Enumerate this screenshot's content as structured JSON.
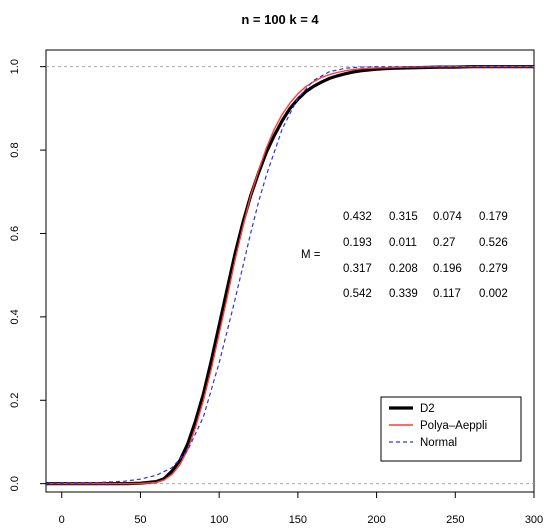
{
  "chart_data": {
    "type": "line",
    "title": "n = 100  k = 4",
    "xlabel": "",
    "ylabel": "",
    "xlim": [
      -10,
      300
    ],
    "ylim": [
      -0.02,
      1.04
    ],
    "x_ticks": [
      0,
      50,
      100,
      150,
      200,
      250,
      300
    ],
    "y_ticks": [
      0.0,
      0.2,
      0.4,
      0.6,
      0.8,
      1.0
    ],
    "y_tick_labels": [
      "0.0",
      "0.2",
      "0.4",
      "0.6",
      "0.8",
      "1.0"
    ],
    "reference_lines": [
      0,
      1
    ],
    "series": [
      {
        "name": "D2",
        "color": "#000000",
        "style": "solid-thick",
        "x": [
          -10,
          40,
          50,
          60,
          65,
          70,
          75,
          80,
          85,
          90,
          95,
          100,
          105,
          110,
          115,
          120,
          125,
          130,
          135,
          140,
          145,
          150,
          155,
          160,
          165,
          170,
          175,
          180,
          185,
          190,
          200,
          210,
          220,
          230,
          240,
          250,
          260,
          280,
          300
        ],
        "y": [
          0,
          0,
          0.001,
          0.005,
          0.012,
          0.03,
          0.055,
          0.095,
          0.15,
          0.215,
          0.295,
          0.38,
          0.465,
          0.55,
          0.625,
          0.69,
          0.745,
          0.795,
          0.835,
          0.87,
          0.9,
          0.922,
          0.94,
          0.953,
          0.963,
          0.972,
          0.978,
          0.983,
          0.987,
          0.99,
          0.994,
          0.996,
          0.997,
          0.998,
          0.999,
          0.999,
          1.0,
          1.0,
          1.0
        ]
      },
      {
        "name": "Polya–Aeppli",
        "color": "#ff3b3b",
        "style": "solid",
        "x": [
          -10,
          40,
          50,
          60,
          65,
          70,
          75,
          80,
          85,
          90,
          95,
          100,
          105,
          110,
          115,
          120,
          125,
          130,
          135,
          140,
          145,
          150,
          155,
          160,
          165,
          170,
          175,
          180,
          185,
          190,
          200,
          210,
          220,
          230,
          240,
          250,
          260,
          280,
          300
        ],
        "y": [
          0,
          0,
          0.0005,
          0.003,
          0.009,
          0.022,
          0.045,
          0.082,
          0.135,
          0.2,
          0.275,
          0.36,
          0.445,
          0.535,
          0.615,
          0.69,
          0.75,
          0.805,
          0.85,
          0.885,
          0.913,
          0.935,
          0.952,
          0.964,
          0.974,
          0.981,
          0.986,
          0.99,
          0.993,
          0.995,
          0.997,
          0.998,
          0.999,
          0.9995,
          1.0,
          1.0,
          1.0,
          1.0,
          1.0
        ]
      },
      {
        "name": "Normal",
        "color": "#3333dd",
        "style": "dashed",
        "x": [
          -10,
          0,
          20,
          40,
          50,
          60,
          70,
          80,
          90,
          100,
          110,
          120,
          125,
          130,
          140,
          150,
          160,
          170,
          180,
          190,
          200,
          210,
          220,
          240,
          260,
          300
        ],
        "y": [
          0.0005,
          0.001,
          0.002,
          0.006,
          0.011,
          0.02,
          0.038,
          0.08,
          0.16,
          0.29,
          0.44,
          0.6,
          0.675,
          0.74,
          0.85,
          0.925,
          0.967,
          0.988,
          0.996,
          0.999,
          1.0,
          1.0,
          1.0,
          1.0,
          1.0,
          1.0
        ]
      }
    ],
    "legend": {
      "position": "bottom-right",
      "entries": [
        "D2",
        "Polya–Aeppli",
        "Normal"
      ]
    },
    "annotation": {
      "label": "M =",
      "matrix": [
        [
          "0.432",
          "0.315",
          "0.074",
          "0.179"
        ],
        [
          "0.193",
          "0.011",
          "0.27",
          "0.526"
        ],
        [
          "0.317",
          "0.208",
          "0.196",
          "0.279"
        ],
        [
          "0.542",
          "0.339",
          "0.117",
          "0.002"
        ]
      ]
    }
  }
}
